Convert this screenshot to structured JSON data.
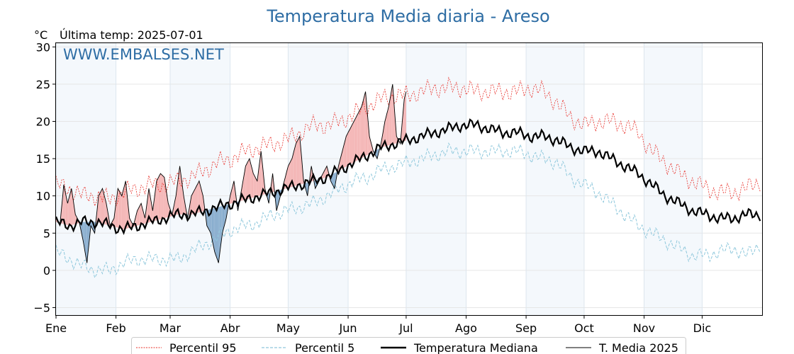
{
  "chart_data": {
    "type": "line",
    "title": "Temperatura Media diaria - Areso",
    "unit_label": "°C",
    "last_temp_label": "Última temp: 2025-07-01",
    "watermark": "WWW.EMBALSES.NET",
    "ylim": [
      -6,
      30.5
    ],
    "xlim": [
      1,
      366
    ],
    "y_ticks": [
      -5,
      0,
      5,
      10,
      15,
      20,
      25,
      30
    ],
    "y_tick_labels": [
      "−5",
      "0",
      "5",
      "10",
      "15",
      "20",
      "25",
      "30"
    ],
    "months": [
      {
        "label": "Ene",
        "start": 1,
        "end": 31
      },
      {
        "label": "Feb",
        "start": 32,
        "end": 59
      },
      {
        "label": "Mar",
        "start": 60,
        "end": 90
      },
      {
        "label": "Abr",
        "start": 91,
        "end": 120
      },
      {
        "label": "May",
        "start": 121,
        "end": 151
      },
      {
        "label": "Jun",
        "start": 152,
        "end": 181
      },
      {
        "label": "Jul",
        "start": 182,
        "end": 212
      },
      {
        "label": "Ago",
        "start": 213,
        "end": 243
      },
      {
        "label": "Sep",
        "start": 244,
        "end": 273
      },
      {
        "label": "Oct",
        "start": 274,
        "end": 304
      },
      {
        "label": "Nov",
        "start": 305,
        "end": 334
      },
      {
        "label": "Dic",
        "start": 335,
        "end": 365
      }
    ],
    "shaded_months": [
      0,
      2,
      4,
      6,
      8,
      10
    ],
    "grid": true,
    "legend_position": "bottom",
    "colors": {
      "p95": "#e8302a",
      "p5": "#8fc8dc",
      "median": "#000000",
      "current": "#000000",
      "above": "#f4b6b6",
      "below": "#8aaecf",
      "title": "#2e6da4",
      "watermark": "#2e6da4",
      "band": "#f4f8fc"
    },
    "legend": [
      {
        "key": "p95",
        "label": "Percentil 95"
      },
      {
        "key": "p5",
        "label": "Percentil 5"
      },
      {
        "key": "median",
        "label": "Temperatura Mediana"
      },
      {
        "key": "current",
        "label": "T. Media 2025"
      }
    ],
    "series": {
      "p95": {
        "name": "Percentil 95",
        "days": [
          1,
          8,
          15,
          22,
          29,
          36,
          43,
          50,
          57,
          64,
          71,
          78,
          85,
          92,
          99,
          106,
          113,
          120,
          127,
          134,
          141,
          148,
          155,
          162,
          169,
          176,
          183,
          190,
          197,
          204,
          211,
          218,
          225,
          232,
          239,
          246,
          253,
          260,
          267,
          274,
          281,
          288,
          295,
          302,
          309,
          316,
          323,
          330,
          337,
          344,
          351,
          358,
          365
        ],
        "values": [
          11.5,
          11,
          10,
          10,
          9.5,
          10.5,
          11,
          11.5,
          11.5,
          12,
          12.5,
          13.5,
          14.5,
          15,
          16,
          16.5,
          17,
          17.5,
          18.5,
          19.5,
          19.5,
          20,
          21,
          22,
          23,
          23.5,
          23.5,
          24,
          24.5,
          24.5,
          24.5,
          24,
          24,
          24,
          24,
          24.5,
          24,
          22.5,
          20.5,
          19.5,
          20,
          20,
          19.5,
          18.5,
          16,
          14.5,
          13,
          12,
          11,
          10.5,
          10.5,
          11,
          12
        ]
      },
      "p5": {
        "name": "Percentil 5",
        "days": [
          1,
          8,
          15,
          22,
          29,
          36,
          43,
          50,
          57,
          64,
          71,
          78,
          85,
          92,
          99,
          106,
          113,
          120,
          127,
          134,
          141,
          148,
          155,
          162,
          169,
          176,
          183,
          190,
          197,
          204,
          211,
          218,
          225,
          232,
          239,
          246,
          253,
          260,
          267,
          274,
          281,
          288,
          295,
          302,
          309,
          316,
          323,
          330,
          337,
          344,
          351,
          358,
          365
        ],
        "values": [
          2.5,
          1.5,
          0.5,
          0,
          0,
          1,
          1.5,
          1.5,
          1.5,
          1.5,
          2.5,
          3.5,
          4.5,
          5.5,
          6,
          6.5,
          7.5,
          8,
          8.5,
          9,
          10,
          11,
          12,
          12.5,
          13.5,
          14,
          14.5,
          15,
          15.5,
          16,
          16,
          16,
          16,
          16,
          16,
          15.5,
          15,
          14.5,
          12.5,
          11.5,
          10.5,
          9,
          7.5,
          6,
          5,
          4,
          3,
          2,
          2,
          2.5,
          3,
          2,
          3.5
        ]
      },
      "median": {
        "name": "Temperatura Mediana",
        "days": [
          1,
          8,
          15,
          22,
          29,
          36,
          43,
          50,
          57,
          64,
          71,
          78,
          85,
          92,
          99,
          106,
          113,
          120,
          127,
          134,
          141,
          148,
          155,
          162,
          169,
          176,
          183,
          190,
          197,
          204,
          211,
          218,
          225,
          232,
          239,
          246,
          253,
          260,
          267,
          274,
          281,
          288,
          295,
          302,
          309,
          316,
          323,
          330,
          337,
          344,
          351,
          358,
          365
        ],
        "values": [
          6.5,
          6,
          6.5,
          6.5,
          6,
          5.5,
          6,
          6.5,
          7,
          7.5,
          7.5,
          8,
          8.5,
          9,
          9.5,
          10,
          10.5,
          11,
          11.5,
          12,
          12.5,
          13.5,
          14.5,
          15.5,
          16.5,
          17,
          17.5,
          18,
          18.5,
          19,
          19.5,
          19.5,
          19,
          18.5,
          18.5,
          18,
          18,
          17.5,
          16.5,
          16,
          16,
          15,
          14,
          13,
          11.5,
          10,
          9,
          8,
          7.5,
          7,
          7,
          7.5,
          7.5
        ]
      },
      "current": {
        "name": "T. Media 2025",
        "days": [
          1,
          3,
          5,
          7,
          9,
          11,
          13,
          15,
          17,
          19,
          21,
          23,
          25,
          27,
          29,
          31,
          33,
          35,
          37,
          39,
          41,
          43,
          45,
          47,
          49,
          51,
          53,
          55,
          57,
          59,
          61,
          63,
          65,
          67,
          69,
          71,
          73,
          75,
          77,
          79,
          81,
          83,
          85,
          87,
          89,
          91,
          93,
          95,
          97,
          99,
          101,
          103,
          105,
          107,
          109,
          111,
          113,
          115,
          117,
          119,
          121,
          123,
          125,
          127,
          129,
          131,
          133,
          135,
          137,
          139,
          141,
          143,
          145,
          147,
          149,
          151,
          153,
          155,
          157,
          159,
          161,
          163,
          165,
          167,
          169,
          171,
          173,
          175,
          177,
          179,
          181,
          182
        ],
        "values": [
          7,
          6,
          11.5,
          9,
          11,
          7.5,
          6.5,
          4,
          1,
          6,
          5,
          10,
          11,
          9,
          6,
          7,
          11,
          10,
          12,
          7,
          6,
          8,
          9,
          7,
          11,
          8,
          12,
          13,
          12.5,
          9,
          7.5,
          10,
          14,
          10,
          7,
          10,
          11,
          12,
          10,
          6,
          5,
          2.5,
          1,
          5,
          7,
          10,
          12,
          8,
          11,
          14,
          15,
          13,
          12,
          16,
          11,
          9,
          13,
          8,
          10,
          12,
          14,
          15,
          17,
          18,
          12,
          10,
          14,
          11,
          12,
          13,
          14,
          12,
          11,
          14,
          16,
          18,
          19,
          20,
          21,
          22,
          24,
          18,
          16,
          15,
          17,
          20,
          22,
          25,
          18,
          17,
          23,
          24
        ]
      }
    }
  }
}
